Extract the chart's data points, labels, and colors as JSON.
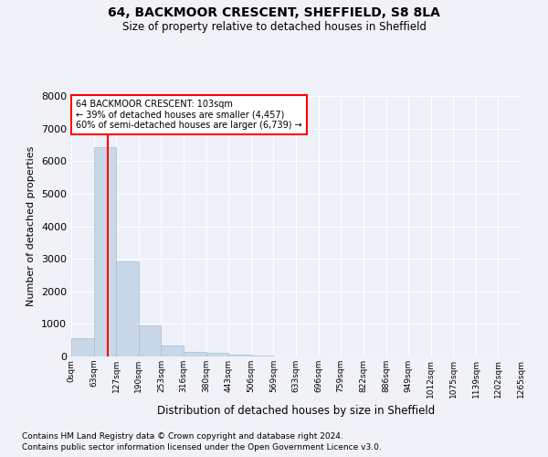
{
  "title": "64, BACKMOOR CRESCENT, SHEFFIELD, S8 8LA",
  "subtitle": "Size of property relative to detached houses in Sheffield",
  "xlabel": "Distribution of detached houses by size in Sheffield",
  "ylabel": "Number of detached properties",
  "bar_values": [
    550,
    6430,
    2920,
    960,
    330,
    150,
    100,
    70,
    20,
    10,
    5,
    2,
    1,
    0,
    0,
    0,
    0,
    0,
    0,
    0
  ],
  "bin_edges": [
    0,
    63,
    127,
    190,
    253,
    316,
    380,
    443,
    506,
    569,
    633,
    696,
    759,
    822,
    886,
    949,
    1012,
    1075,
    1139,
    1202,
    1265
  ],
  "x_tick_labels": [
    "0sqm",
    "63sqm",
    "127sqm",
    "190sqm",
    "253sqm",
    "316sqm",
    "380sqm",
    "443sqm",
    "506sqm",
    "569sqm",
    "633sqm",
    "696sqm",
    "759sqm",
    "822sqm",
    "886sqm",
    "949sqm",
    "1012sqm",
    "1075sqm",
    "1139sqm",
    "1202sqm",
    "1265sqm"
  ],
  "bar_color": "#c8d8e8",
  "bar_edge_color": "#a8bece",
  "red_line_x": 103,
  "ylim": [
    0,
    8000
  ],
  "yticks": [
    0,
    1000,
    2000,
    3000,
    4000,
    5000,
    6000,
    7000,
    8000
  ],
  "annotation_title": "64 BACKMOOR CRESCENT: 103sqm",
  "annotation_line1": "← 39% of detached houses are smaller (4,457)",
  "annotation_line2": "60% of semi-detached houses are larger (6,739) →",
  "footer_line1": "Contains HM Land Registry data © Crown copyright and database right 2024.",
  "footer_line2": "Contains public sector information licensed under the Open Government Licence v3.0.",
  "bg_color": "#f0f2f8",
  "plot_bg_color": "#eef1f8"
}
